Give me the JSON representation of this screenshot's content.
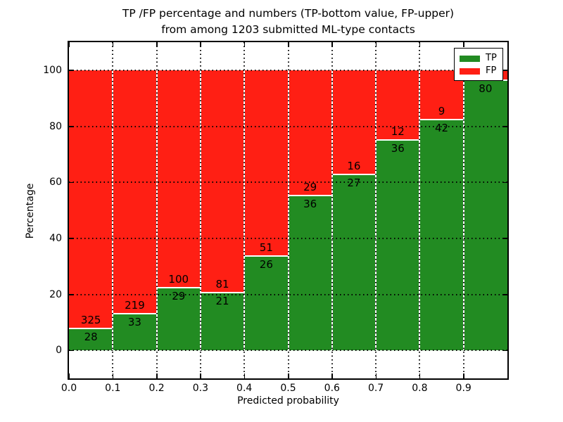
{
  "title": {
    "line1": "TP /FP percentage and numbers (TP-bottom value, FP-upper)",
    "line2": "from among 1203 submitted ML-type contacts"
  },
  "chart_data": {
    "type": "bar",
    "stacked": true,
    "normalized_to_percent": true,
    "title": "TP /FP percentage and numbers (TP-bottom value, FP-upper) from among 1203 submitted ML-type contacts",
    "xlabel": "Predicted probability",
    "ylabel": "Percentage",
    "xlim": [
      0.0,
      1.0
    ],
    "ylim": [
      -10,
      110
    ],
    "x_tick_labels": [
      "0.0",
      "0.1",
      "0.2",
      "0.3",
      "0.4",
      "0.5",
      "0.6",
      "0.7",
      "0.8",
      "0.9"
    ],
    "y_tick_values": [
      0,
      20,
      40,
      60,
      80,
      100
    ],
    "grid": "dotted",
    "total_contacts": 1203,
    "legend": {
      "position": "upper right",
      "entries": [
        {
          "label": "TP",
          "color": "#228b22"
        },
        {
          "label": "FP",
          "color": "#ff1f14"
        }
      ]
    },
    "bars": [
      {
        "bin": [
          0.0,
          0.1
        ],
        "tp": 28,
        "fp": 325
      },
      {
        "bin": [
          0.1,
          0.2
        ],
        "tp": 33,
        "fp": 219
      },
      {
        "bin": [
          0.2,
          0.3
        ],
        "tp": 29,
        "fp": 100
      },
      {
        "bin": [
          0.3,
          0.4
        ],
        "tp": 21,
        "fp": 81
      },
      {
        "bin": [
          0.4,
          0.5
        ],
        "tp": 26,
        "fp": 51
      },
      {
        "bin": [
          0.5,
          0.6
        ],
        "tp": 36,
        "fp": 29
      },
      {
        "bin": [
          0.6,
          0.7
        ],
        "tp": 27,
        "fp": 16
      },
      {
        "bin": [
          0.7,
          0.8
        ],
        "tp": 36,
        "fp": 12
      },
      {
        "bin": [
          0.8,
          0.9
        ],
        "tp": 42,
        "fp": 9
      },
      {
        "bin": [
          0.9,
          1.0
        ],
        "tp": 80,
        "fp": 3,
        "fp_label_hidden": true
      }
    ]
  }
}
